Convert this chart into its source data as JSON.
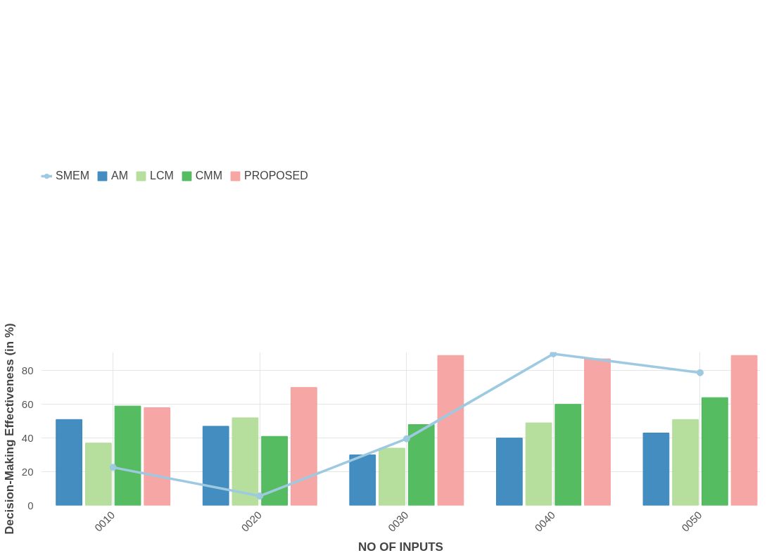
{
  "chart_data": {
    "type": "bar",
    "xlabel": "NO OF INPUTS",
    "ylabel": "Decision-Making Effectiveness (in %)",
    "categories": [
      "0010",
      "0020",
      "0030",
      "0040",
      "0050"
    ],
    "series": [
      {
        "name": "SMEM",
        "type": "line",
        "color": "#9ecae1",
        "values": [
          22.6,
          5.6,
          39.6,
          90,
          78.8
        ],
        "marker": "circle"
      },
      {
        "name": "AM",
        "color": "#3a87be",
        "values": [
          51,
          47,
          30,
          40,
          43
        ]
      },
      {
        "name": "LCM",
        "color": "#b2dc98",
        "values": [
          37,
          52,
          34,
          49,
          51
        ]
      },
      {
        "name": "CMM",
        "color": "#4cb85a",
        "values": [
          59,
          41,
          48,
          60,
          64
        ]
      },
      {
        "name": "PROPOSED",
        "color": "#f6a19f",
        "values": [
          58,
          70,
          89,
          87,
          89
        ]
      }
    ],
    "ylim": [
      0,
      91
    ],
    "yticks": [
      0,
      20,
      40,
      60,
      80
    ],
    "grid": true,
    "legend": "top left"
  }
}
